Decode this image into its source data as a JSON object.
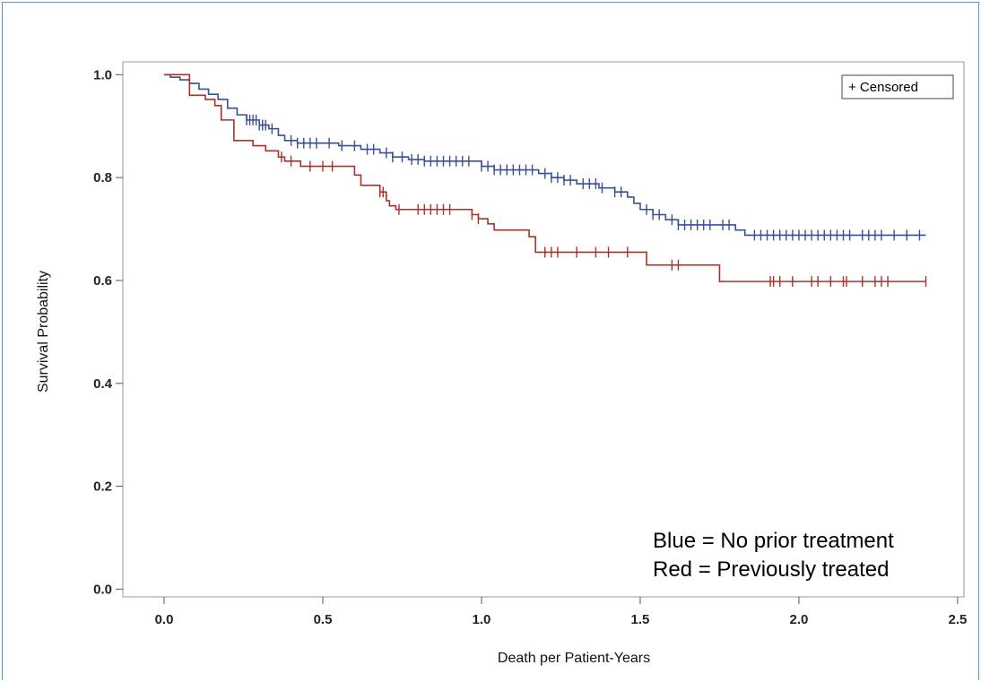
{
  "chart_data": {
    "type": "line",
    "xlabel": "Death per Patient-Years",
    "ylabel": "Survival Probability",
    "xlim": [
      -0.13,
      2.52
    ],
    "ylim": [
      -0.015,
      1.025
    ],
    "x_ticks": [
      "0.0",
      "0.5",
      "1.0",
      "1.5",
      "2.0",
      "2.5"
    ],
    "y_ticks": [
      "0.0",
      "0.2",
      "0.4",
      "0.6",
      "0.8",
      "1.0"
    ],
    "legend": {
      "label": "+ Censored",
      "placement": "top-right"
    },
    "annotations": [
      "Blue = No prior treatment",
      "Red = Previously treated"
    ],
    "series": [
      {
        "color": "#3b4f96",
        "steps": [
          [
            0.0,
            1.0
          ],
          [
            0.02,
            0.995
          ],
          [
            0.05,
            0.99
          ],
          [
            0.08,
            0.983
          ],
          [
            0.11,
            0.972
          ],
          [
            0.14,
            0.962
          ],
          [
            0.17,
            0.952
          ],
          [
            0.2,
            0.935
          ],
          [
            0.23,
            0.922
          ],
          [
            0.26,
            0.912
          ],
          [
            0.3,
            0.902
          ],
          [
            0.33,
            0.895
          ],
          [
            0.36,
            0.882
          ],
          [
            0.38,
            0.872
          ],
          [
            0.42,
            0.867
          ],
          [
            0.55,
            0.862
          ],
          [
            0.62,
            0.855
          ],
          [
            0.68,
            0.848
          ],
          [
            0.72,
            0.84
          ],
          [
            0.77,
            0.835
          ],
          [
            0.82,
            0.832
          ],
          [
            1.0,
            0.822
          ],
          [
            1.04,
            0.815
          ],
          [
            1.18,
            0.808
          ],
          [
            1.22,
            0.8
          ],
          [
            1.26,
            0.795
          ],
          [
            1.3,
            0.788
          ],
          [
            1.37,
            0.78
          ],
          [
            1.42,
            0.772
          ],
          [
            1.46,
            0.762
          ],
          [
            1.48,
            0.75
          ],
          [
            1.5,
            0.738
          ],
          [
            1.54,
            0.728
          ],
          [
            1.58,
            0.718
          ],
          [
            1.62,
            0.708
          ],
          [
            1.8,
            0.698
          ],
          [
            1.83,
            0.688
          ],
          [
            2.4,
            0.688
          ]
        ],
        "censored": [
          0.26,
          0.27,
          0.28,
          0.29,
          0.3,
          0.31,
          0.32,
          0.34,
          0.4,
          0.42,
          0.44,
          0.46,
          0.48,
          0.52,
          0.56,
          0.6,
          0.64,
          0.66,
          0.7,
          0.72,
          0.75,
          0.78,
          0.8,
          0.82,
          0.84,
          0.86,
          0.88,
          0.9,
          0.92,
          0.94,
          0.96,
          1.0,
          1.02,
          1.04,
          1.06,
          1.08,
          1.1,
          1.12,
          1.14,
          1.16,
          1.2,
          1.22,
          1.24,
          1.26,
          1.28,
          1.32,
          1.34,
          1.36,
          1.38,
          1.42,
          1.44,
          1.52,
          1.54,
          1.56,
          1.6,
          1.62,
          1.64,
          1.66,
          1.68,
          1.7,
          1.72,
          1.76,
          1.78,
          1.86,
          1.88,
          1.9,
          1.92,
          1.94,
          1.96,
          1.98,
          2.0,
          2.02,
          2.04,
          2.06,
          2.08,
          2.1,
          2.12,
          2.14,
          2.16,
          2.2,
          2.22,
          2.24,
          2.26,
          2.3,
          2.34,
          2.38
        ]
      },
      {
        "color": "#a8322a",
        "steps": [
          [
            0.0,
            1.0
          ],
          [
            0.07,
            1.0
          ],
          [
            0.08,
            0.96
          ],
          [
            0.13,
            0.952
          ],
          [
            0.16,
            0.94
          ],
          [
            0.18,
            0.912
          ],
          [
            0.22,
            0.872
          ],
          [
            0.28,
            0.862
          ],
          [
            0.32,
            0.852
          ],
          [
            0.36,
            0.84
          ],
          [
            0.38,
            0.832
          ],
          [
            0.43,
            0.822
          ],
          [
            0.6,
            0.805
          ],
          [
            0.62,
            0.785
          ],
          [
            0.68,
            0.772
          ],
          [
            0.7,
            0.755
          ],
          [
            0.71,
            0.745
          ],
          [
            0.73,
            0.738
          ],
          [
            0.97,
            0.728
          ],
          [
            0.99,
            0.72
          ],
          [
            1.02,
            0.71
          ],
          [
            1.04,
            0.698
          ],
          [
            1.15,
            0.685
          ],
          [
            1.17,
            0.655
          ],
          [
            1.52,
            0.63
          ],
          [
            1.75,
            0.598
          ],
          [
            2.4,
            0.598
          ]
        ],
        "censored": [
          0.37,
          0.4,
          0.46,
          0.5,
          0.53,
          0.68,
          0.69,
          0.74,
          0.8,
          0.82,
          0.84,
          0.86,
          0.88,
          0.9,
          0.97,
          0.99,
          1.2,
          1.22,
          1.24,
          1.3,
          1.36,
          1.4,
          1.46,
          1.6,
          1.62,
          1.91,
          1.92,
          1.94,
          1.98,
          2.04,
          2.06,
          2.1,
          2.14,
          2.15,
          2.2,
          2.24,
          2.26,
          2.28,
          2.4
        ]
      }
    ]
  }
}
